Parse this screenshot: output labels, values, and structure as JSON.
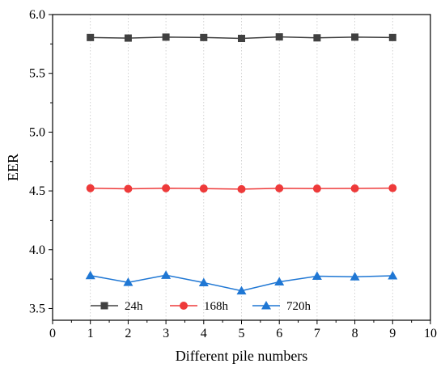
{
  "chart_data": {
    "type": "line",
    "xlabel": "Different pile numbers",
    "ylabel": "EER",
    "xlim": [
      0,
      10
    ],
    "ylim": [
      3.4,
      6.0
    ],
    "xticks": [
      0,
      1,
      2,
      3,
      4,
      5,
      6,
      7,
      8,
      9,
      10
    ],
    "xtick_labels": [
      "0",
      "1",
      "2",
      "3",
      "4",
      "5",
      "6",
      "7",
      "8",
      "9",
      "10"
    ],
    "yticks": [
      3.5,
      4.0,
      4.5,
      5.0,
      5.5,
      6.0
    ],
    "ytick_labels": [
      "3.5",
      "4.0",
      "4.5",
      "5.0",
      "5.5",
      "6.0"
    ],
    "grid": "vertical dotted",
    "legend_position": "bottom",
    "x": [
      1,
      2,
      3,
      4,
      5,
      6,
      7,
      8,
      9
    ],
    "series": [
      {
        "name": "24h",
        "color": "#404040",
        "marker": "square",
        "values": [
          5.805,
          5.8,
          5.808,
          5.805,
          5.797,
          5.81,
          5.802,
          5.808,
          5.805
        ]
      },
      {
        "name": "168h",
        "color": "#ee3a3a",
        "marker": "circle",
        "values": [
          4.523,
          4.518,
          4.523,
          4.52,
          4.515,
          4.522,
          4.52,
          4.521,
          4.524
        ]
      },
      {
        "name": "720h",
        "color": "#1f77d4",
        "marker": "triangle",
        "values": [
          3.78,
          3.722,
          3.783,
          3.72,
          3.65,
          3.727,
          3.775,
          3.77,
          3.778
        ]
      }
    ]
  }
}
